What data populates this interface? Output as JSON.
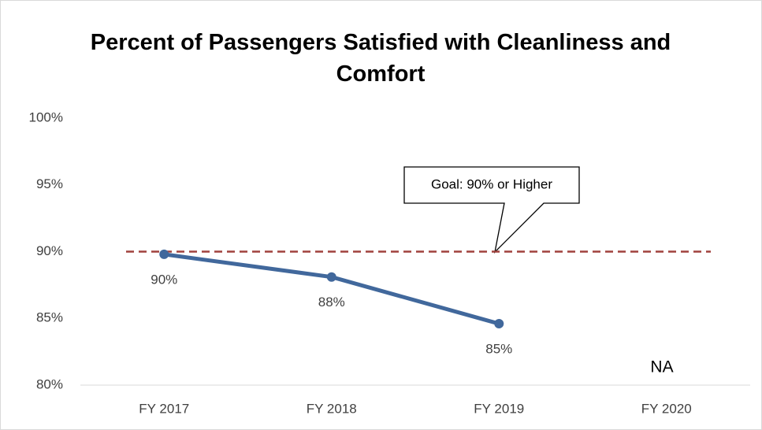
{
  "chart_data": {
    "type": "line",
    "title": "Percent of Passengers Satisfied with Cleanliness and Comfort",
    "categories": [
      "FY 2017",
      "FY 2018",
      "FY 2019",
      "FY 2020"
    ],
    "series": [
      {
        "color": "#41689c",
        "values": [
          89.8,
          88.1,
          84.6,
          null
        ],
        "value_labels": [
          "90%",
          "88%",
          "85%",
          null
        ]
      }
    ],
    "ylim": [
      80,
      100
    ],
    "yticks": [
      {
        "value": 80,
        "label": "80%"
      },
      {
        "value": 85,
        "label": "85%"
      },
      {
        "value": 90,
        "label": "90%"
      },
      {
        "value": 95,
        "label": "95%"
      },
      {
        "value": 100,
        "label": "100%"
      }
    ],
    "grid": false,
    "goal": {
      "value": 90,
      "label": "Goal: 90% or Higher",
      "color": "#a0413d"
    },
    "annotations": [
      "NA"
    ]
  }
}
